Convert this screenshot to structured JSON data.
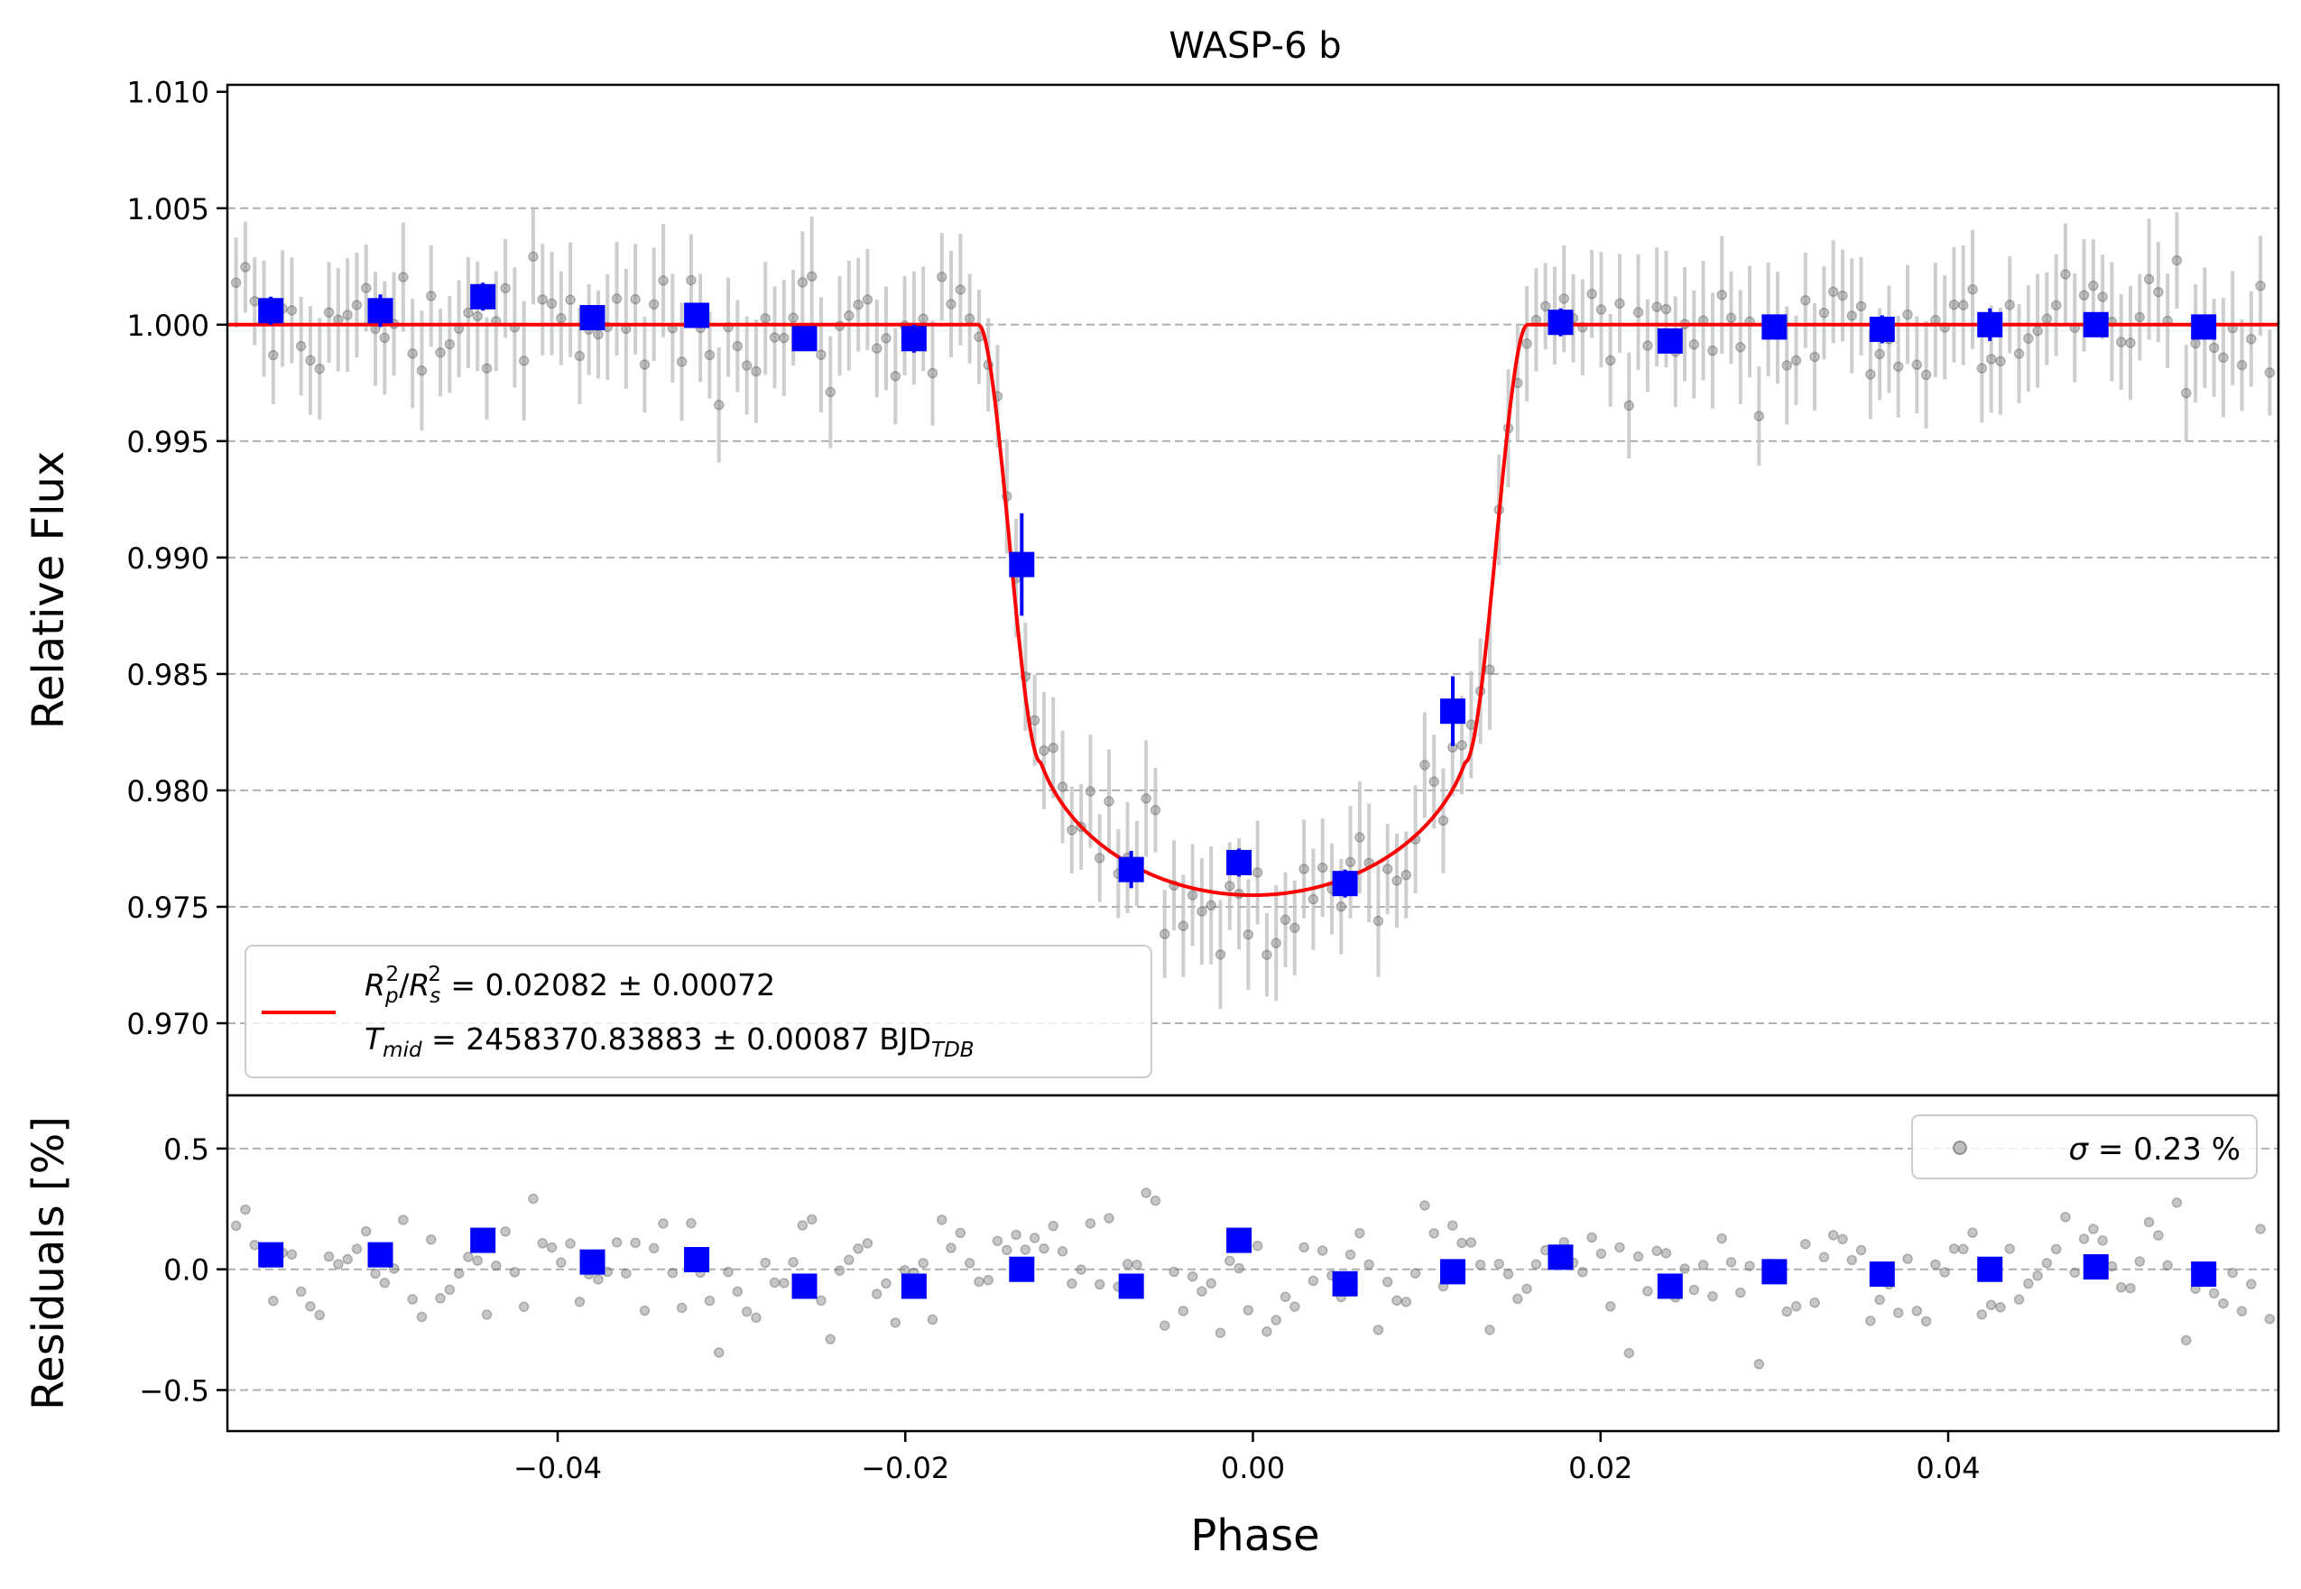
{
  "chart_data": [
    {
      "type": "scatter",
      "panel": "light-curve",
      "title": "WASP-6 b",
      "xlabel": "Phase",
      "ylabel": "Relative Flux",
      "xlim": [
        -0.059,
        0.059
      ],
      "ylim": [
        0.9669,
        1.0103
      ],
      "xticks": [
        -0.04,
        -0.02,
        0.0,
        0.02,
        0.04
      ],
      "xtick_labels": [
        "−0.04",
        "−0.02",
        "0.00",
        "0.02",
        "0.04"
      ],
      "yticks": [
        0.97,
        0.975,
        0.98,
        0.985,
        0.99,
        0.995,
        1.0,
        1.005,
        1.01
      ],
      "ytick_labels": [
        "0.970",
        "0.975",
        "0.980",
        "0.985",
        "0.990",
        "0.995",
        "1.000",
        "1.005",
        "1.010"
      ],
      "grid": "horizontal dashed",
      "model": {
        "name": "transit model",
        "color": "#ff0000",
        "baseline": 1.0,
        "depth_min": 0.9755,
        "t1_t4": [
          -0.0158,
          0.0158
        ],
        "t2_t3": [
          -0.0122,
          0.0122
        ],
        "contact_flux": 0.9812
      },
      "binned": {
        "color": "#0000ff",
        "x": [
          -0.0565,
          -0.0502,
          -0.0443,
          -0.038,
          -0.032,
          -0.0258,
          -0.0195,
          -0.0133,
          -0.007,
          -0.0008,
          0.0053,
          0.0115,
          0.0177,
          0.024,
          0.03,
          0.0362,
          0.0424,
          0.0485,
          0.0547
        ],
        "y": [
          1.0006,
          1.0006,
          1.0012,
          1.0003,
          1.0004,
          0.9994,
          0.9994,
          0.9897,
          0.9766,
          0.9769,
          0.976,
          0.9834,
          1.0001,
          0.9993,
          0.9999,
          0.9998,
          1.0,
          1.0,
          0.9999
        ],
        "err": [
          0.0006,
          0.0007,
          0.0006,
          0.0005,
          0.0005,
          0.0005,
          0.0006,
          0.0022,
          0.0008,
          0.0006,
          0.0006,
          0.0015,
          0.0006,
          0.0004,
          0.0005,
          0.0006,
          0.0007,
          0.0005,
          0.0005
        ]
      },
      "legend": {
        "position": "lower-left",
        "line1_sym_a": "R",
        "line1_sub_a": "p",
        "line1_sup_a": "2",
        "line1_slash": "/",
        "line1_sym_b": "R",
        "line1_sub_b": "s",
        "line1_sup_b": "2",
        "line1_value": " = 0.02082 ± 0.00072",
        "line2_sym": "T",
        "line2_sub": "mid",
        "line2_value": " = 2458370.83883 ± 0.00087 BJD",
        "line2_unit_sub": "TDB"
      }
    },
    {
      "type": "scatter",
      "panel": "residuals",
      "xlabel": "Phase",
      "ylabel": "Residuals [%]",
      "xlim": [
        -0.059,
        0.059
      ],
      "ylim": [
        -0.67,
        0.72
      ],
      "yticks": [
        -0.5,
        0.0,
        0.5
      ],
      "ytick_labels": [
        "−0.5",
        "0.0",
        "0.5"
      ],
      "grid": "horizontal dashed",
      "binned": {
        "color": "#0000ff",
        "x": [
          -0.0565,
          -0.0502,
          -0.0443,
          -0.038,
          -0.032,
          -0.0258,
          -0.0195,
          -0.0133,
          -0.007,
          -0.0008,
          0.0053,
          0.0115,
          0.0177,
          0.024,
          0.03,
          0.0362,
          0.0424,
          0.0485,
          0.0547
        ],
        "y": [
          0.06,
          0.06,
          0.12,
          0.03,
          0.04,
          -0.07,
          -0.07,
          0.0,
          -0.07,
          0.12,
          -0.06,
          -0.01,
          0.05,
          -0.07,
          -0.01,
          -0.02,
          0.0,
          0.01,
          -0.02
        ]
      },
      "legend": {
        "position": "upper-right",
        "sigma_symbol": "σ",
        "sigma_text": " = 0.23 %"
      }
    }
  ]
}
